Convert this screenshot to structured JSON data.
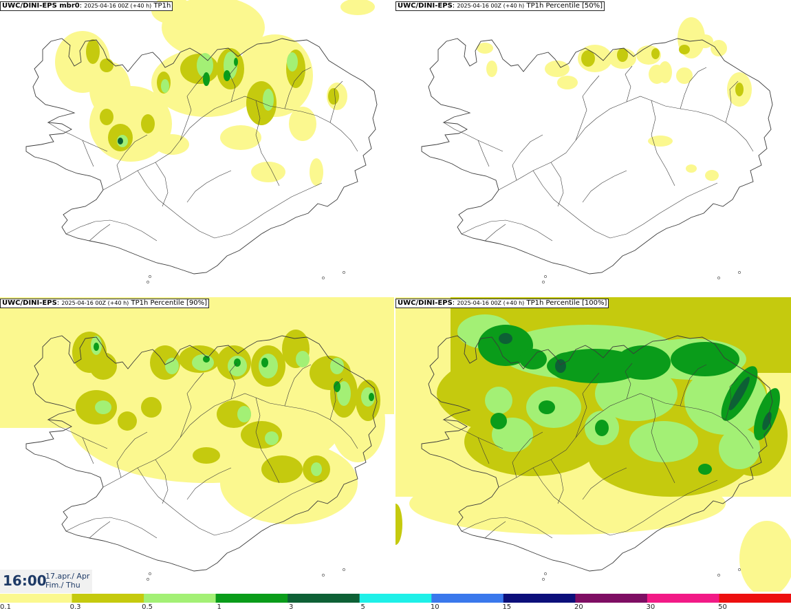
{
  "panels": [
    {
      "id": "p1",
      "title_bold": "UWC/DINI-EPS mbr0",
      "meta": "2025-04-16 00Z (+40 h)",
      "field": "TP1h"
    },
    {
      "id": "p2",
      "title_bold": "UWC/DINI-EPS",
      "meta": "2025-04-16 00Z (+40 h)",
      "field": "TP1h Percentile [50%]"
    },
    {
      "id": "p3",
      "title_bold": "UWC/DINI-EPS",
      "meta": "2025-04-16 00Z (+40 h)",
      "field": "TP1h Percentile [90%]"
    },
    {
      "id": "p4",
      "title_bold": "UWC/DINI-EPS",
      "meta": "2025-04-16 00Z (+40 h)",
      "field": "TP1h Percentile [100%]"
    }
  ],
  "time": {
    "clock": "16:00",
    "date_line": "17.apr./ Apr",
    "day_line": "Fim./ Thu"
  },
  "colorbar": {
    "labels": [
      "0.1",
      "0.3",
      "0.5",
      "1",
      "3",
      "5",
      "10",
      "15",
      "20",
      "30",
      "50"
    ],
    "colors": [
      "#fbf88f",
      "#c5ca0e",
      "#a3f075",
      "#0a9c1a",
      "#0d6035",
      "#1ef0e8",
      "#3a78ec",
      "#0c0f7a",
      "#7e0e63",
      "#f21a86",
      "#ed0f0f"
    ]
  },
  "map_colors": {
    "land_outline": "#3a3a3a",
    "light": "#fbf88f",
    "olive": "#c5ca0e",
    "lightgreen": "#a3f075",
    "green": "#0a9c1a",
    "darkgreen": "#0d6035"
  }
}
